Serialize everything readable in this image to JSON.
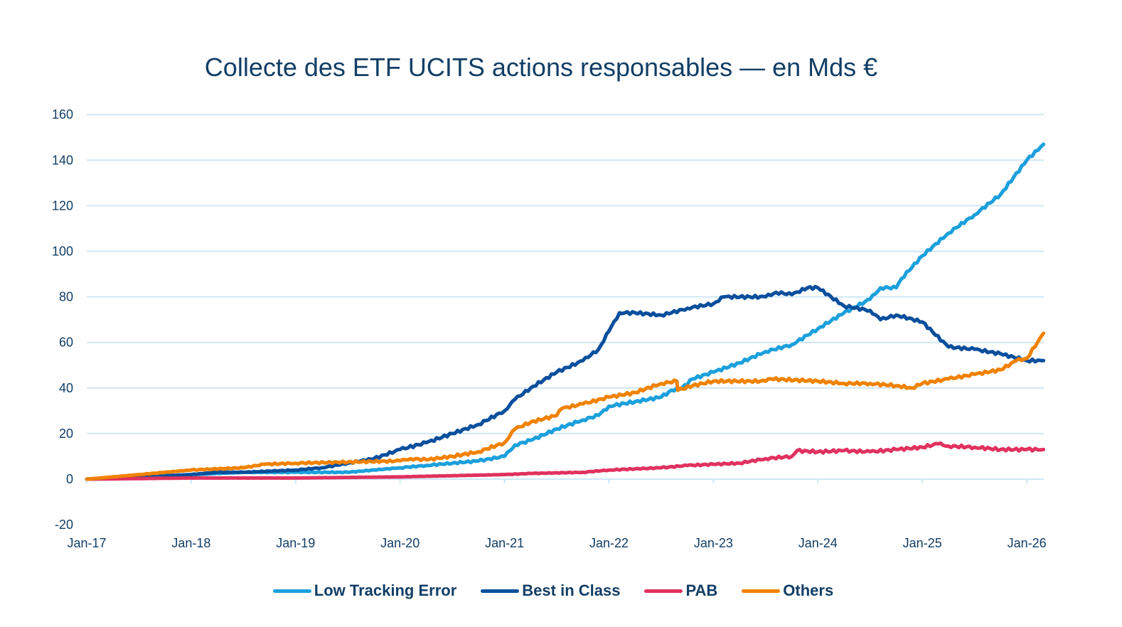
{
  "chart_data": {
    "type": "line",
    "title": "Collecte des ETF UCITS actions responsables — en Mds €",
    "xlabel": "",
    "ylabel": "",
    "ylim": [
      -20,
      160
    ],
    "yticks": [
      "160",
      "140",
      "120",
      "100",
      "80",
      "60",
      "40",
      "20",
      "0",
      "-20"
    ],
    "ytick_values": [
      160,
      140,
      120,
      100,
      80,
      60,
      40,
      20,
      0,
      -20
    ],
    "xticks": [
      "Jan-17",
      "Jan-18",
      "Jan-19",
      "Jan-20",
      "Jan-21",
      "Jan-22",
      "Jan-23",
      "Jan-24",
      "Jan-25",
      "Jan-26"
    ],
    "x_unit": "years since Jan-17",
    "xlim": [
      0,
      9.16
    ],
    "grid": true,
    "legend_position": "bottom",
    "series": [
      {
        "name": "Low Tracking Error",
        "color": "#1ca0dc",
        "x": [
          0,
          0.5,
          1,
          1.5,
          2,
          2.5,
          3,
          3.25,
          3.5,
          3.75,
          4,
          4.1,
          4.25,
          4.5,
          4.75,
          4.9,
          5,
          5.25,
          5.5,
          5.6,
          5.7,
          5.8,
          6,
          6.25,
          6.5,
          6.75,
          7,
          7.25,
          7.5,
          7.6,
          7.75,
          7.8,
          8,
          8.25,
          8.5,
          8.75,
          9,
          9.16
        ],
        "y": [
          0,
          0.5,
          2,
          3,
          3,
          3,
          5,
          6,
          7,
          8,
          10,
          15,
          17,
          22,
          26,
          28,
          32,
          34,
          36,
          39,
          40,
          44,
          47,
          51,
          56,
          59,
          66,
          73,
          79,
          84,
          84,
          88,
          98,
          108,
          116,
          125,
          140,
          147
        ]
      },
      {
        "name": "Best in Class",
        "color": "#0a4f9c",
        "x": [
          0,
          0.5,
          1,
          1.25,
          1.5,
          2,
          2.25,
          2.5,
          2.75,
          3,
          3.25,
          3.5,
          3.75,
          4,
          4.1,
          4.25,
          4.5,
          4.75,
          4.9,
          5,
          5.1,
          5.25,
          5.5,
          5.6,
          5.75,
          6,
          6.1,
          6.5,
          6.6,
          6.75,
          6.9,
          7,
          7.25,
          7.5,
          7.6,
          7.75,
          8,
          8.25,
          8.5,
          8.75,
          9,
          9.16
        ],
        "y": [
          0,
          1,
          2,
          3,
          3,
          4,
          5,
          7,
          9,
          13,
          16,
          20,
          24,
          30,
          35,
          40,
          47,
          52,
          57,
          65,
          73,
          73,
          72,
          73,
          75,
          77,
          80,
          80,
          82,
          81,
          84,
          84,
          76,
          74,
          70,
          72,
          69,
          58,
          57,
          55,
          52,
          52
        ]
      },
      {
        "name": "PAB",
        "color": "#e0325f",
        "x": [
          0,
          1,
          2,
          3,
          4,
          4.25,
          4.75,
          5,
          5.5,
          5.75,
          6,
          6.25,
          6.5,
          6.75,
          6.8,
          7,
          7.25,
          7.5,
          7.75,
          8,
          8.15,
          8.25,
          8.5,
          8.75,
          9,
          9.16
        ],
        "y": [
          0,
          0.5,
          0.5,
          1,
          2,
          2.5,
          3,
          4,
          5,
          6,
          6.5,
          7,
          9,
          10,
          12.5,
          12,
          12.5,
          12,
          13,
          14,
          15.5,
          14.5,
          14,
          13,
          13,
          13
        ]
      },
      {
        "name": "Others",
        "color": "#f08200",
        "x": [
          0,
          0.5,
          1,
          1.5,
          1.7,
          2,
          2.5,
          3,
          3.1,
          3.25,
          3.5,
          3.75,
          4,
          4.1,
          4.25,
          4.5,
          4.55,
          4.75,
          5,
          5.25,
          5.5,
          5.65,
          5.66,
          5.8,
          6,
          6.5,
          6.55,
          7,
          7.25,
          7.5,
          7.75,
          7.9,
          8,
          8.25,
          8.5,
          8.75,
          8.9,
          9,
          9.16
        ],
        "y": [
          0,
          2,
          4,
          5,
          6.5,
          7,
          7.5,
          8,
          9,
          8.5,
          10,
          12,
          16,
          22,
          25,
          28,
          31,
          33,
          36,
          38,
          42,
          43,
          39,
          41,
          43,
          43,
          44,
          43,
          42,
          42,
          41,
          40,
          42,
          44,
          46,
          48,
          52,
          53,
          64
        ]
      }
    ]
  }
}
